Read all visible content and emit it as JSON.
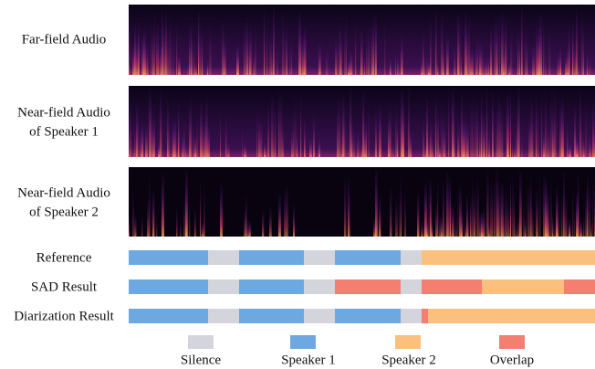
{
  "rows": {
    "far_field": {
      "label": "Far-field Audio"
    },
    "near_field_1": {
      "label_lines": [
        "Near-field Audio",
        "of Speaker 1"
      ]
    },
    "near_field_2": {
      "label_lines": [
        "Near-field Audio",
        "of Speaker 2"
      ]
    },
    "reference": {
      "label": "Reference"
    },
    "sad": {
      "label": "SAD Result"
    },
    "diarization": {
      "label": "Diarization Result"
    }
  },
  "legend": [
    "Silence",
    "Speaker 1",
    "Speaker 2",
    "Overlap"
  ]
}
